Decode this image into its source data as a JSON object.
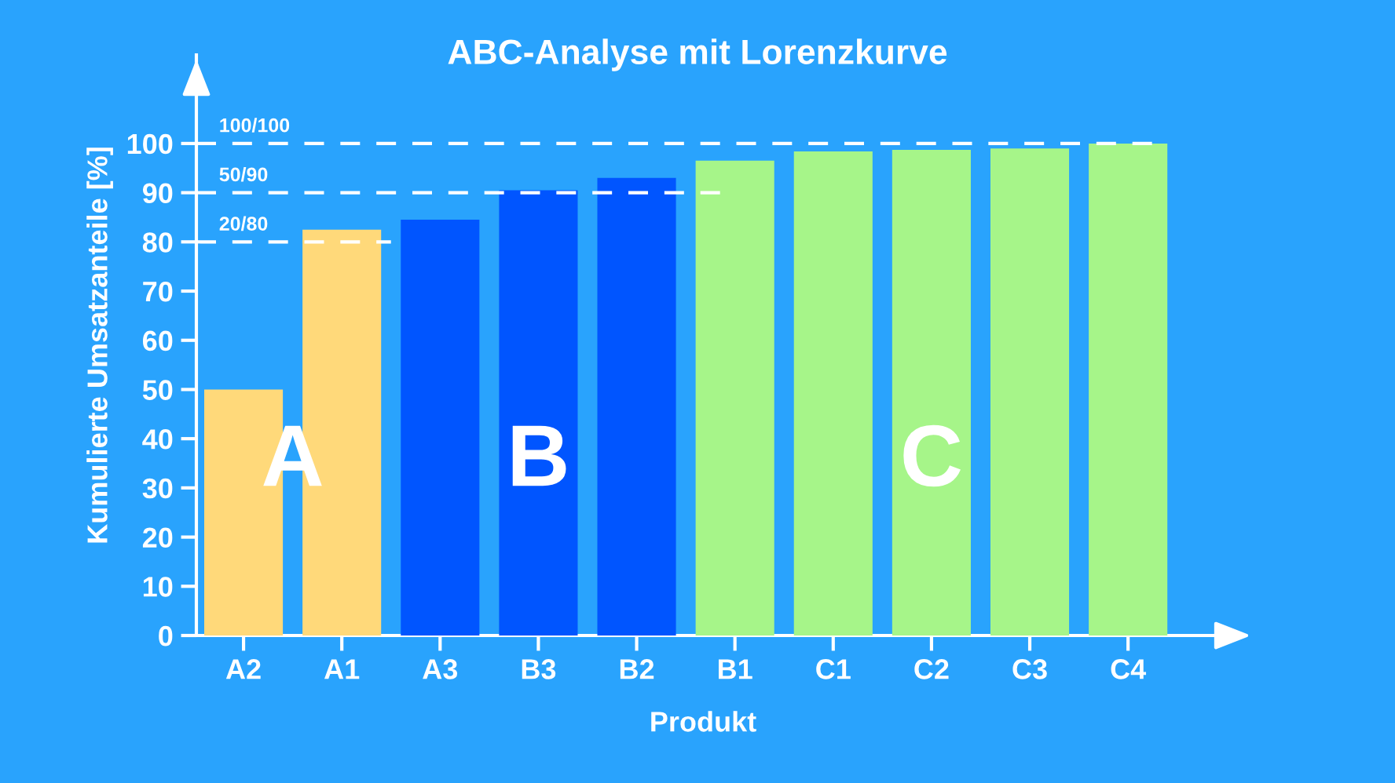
{
  "chart_data": {
    "type": "bar",
    "title": "ABC-Analyse mit Lorenzkurve",
    "xlabel": "Produkt",
    "ylabel": "Kumulierte Umsatzanteile [%]",
    "categories": [
      "A2",
      "A1",
      "A3",
      "B3",
      "B2",
      "B1",
      "C1",
      "C2",
      "C3",
      "C4"
    ],
    "values": [
      50,
      82.5,
      84.5,
      90.5,
      93,
      96.5,
      98.4,
      98.7,
      99,
      100
    ],
    "colors": [
      "#ffd97a",
      "#ffd97a",
      "#0055ff",
      "#0055ff",
      "#0055ff",
      "#a6f589",
      "#a6f589",
      "#a6f589",
      "#a6f589",
      "#a6f589"
    ],
    "ylim": [
      0,
      118
    ],
    "yticks": [
      0,
      10,
      20,
      30,
      40,
      50,
      60,
      70,
      80,
      90,
      100
    ],
    "grid": false,
    "ref_lines": [
      {
        "axis": "y",
        "value": 80,
        "label": "20/80",
        "color": "#ffffff",
        "line_style": "dashed"
      },
      {
        "axis": "y",
        "value": 90,
        "label": "50/90",
        "color": "#ffffff",
        "line_style": "dashed"
      },
      {
        "axis": "y",
        "value": 100,
        "label": "100/100",
        "color": "#ffffff",
        "line_style": "dashed"
      }
    ],
    "annotations": [
      "A",
      "B",
      "C"
    ]
  }
}
